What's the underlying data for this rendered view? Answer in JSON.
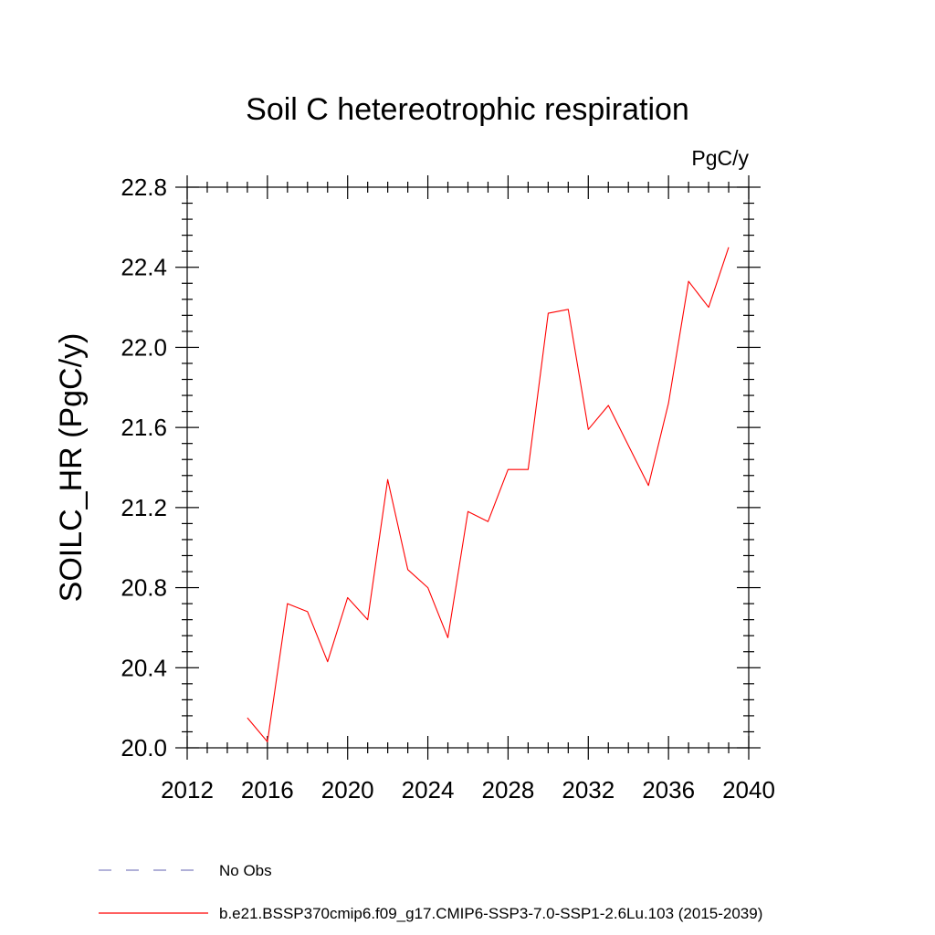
{
  "chart_data": {
    "type": "line",
    "title": "Soil C hetereotrophic respiration",
    "units_label": "PgC/y",
    "xlabel": "",
    "ylabel": "SOILC_HR  (PgC/y)",
    "xlim": [
      2012,
      2040
    ],
    "ylim": [
      20.0,
      22.8
    ],
    "xticks": [
      2012,
      2016,
      2020,
      2024,
      2028,
      2032,
      2036,
      2040
    ],
    "yticks": [
      "20.0",
      "20.4",
      "20.8",
      "21.2",
      "21.6",
      "22.0",
      "22.4",
      "22.8"
    ],
    "grid": false,
    "series": [
      {
        "name": "b.e21.BSSP370cmip6.f09_g17.CMIP6-SSP3-7.0-SSP1-2.6Lu.103 (2015-2039)",
        "color": "#ff0000",
        "x": [
          2015,
          2016,
          2017,
          2018,
          2019,
          2020,
          2021,
          2022,
          2023,
          2024,
          2025,
          2026,
          2027,
          2028,
          2029,
          2030,
          2031,
          2032,
          2033,
          2034,
          2035,
          2036,
          2037,
          2038,
          2039
        ],
        "values": [
          20.15,
          20.03,
          20.72,
          20.68,
          20.43,
          20.75,
          20.64,
          21.34,
          20.89,
          20.8,
          20.55,
          21.18,
          21.13,
          21.39,
          21.39,
          22.17,
          22.19,
          21.59,
          21.71,
          21.51,
          21.31,
          21.72,
          22.33,
          22.2,
          22.5
        ]
      }
    ],
    "legend": [
      {
        "label": "No Obs",
        "color": "#8080c0",
        "style": "dashed"
      },
      {
        "label": "b.e21.BSSP370cmip6.f09_g17.CMIP6-SSP3-7.0-SSP1-2.6Lu.103 (2015-2039)",
        "color": "#ff0000",
        "style": "solid"
      }
    ],
    "legend_position": "bottom-left"
  }
}
